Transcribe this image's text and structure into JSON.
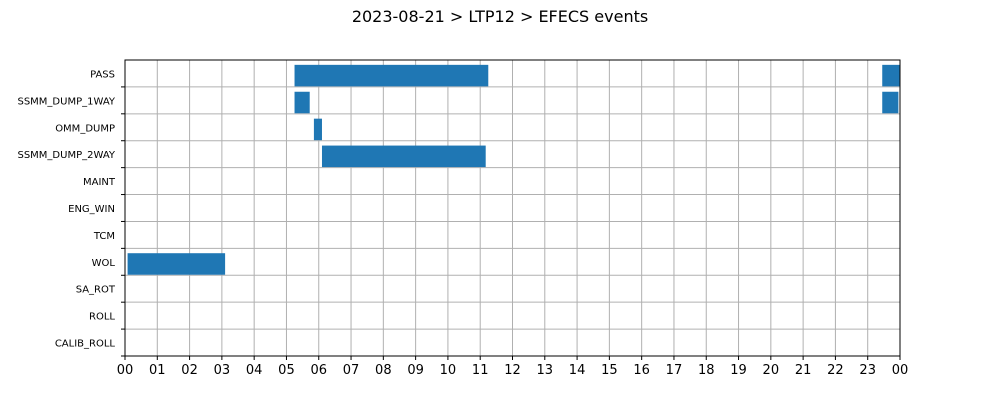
{
  "chart_data": {
    "type": "bar",
    "orientation": "horizontal-timeline",
    "title": "2023-08-21 > LTP12 > EFECS events",
    "xlabel": "",
    "ylabel": "",
    "x_range_hours": [
      0,
      24
    ],
    "x_tick_labels": [
      "00",
      "01",
      "02",
      "03",
      "04",
      "05",
      "06",
      "07",
      "08",
      "09",
      "10",
      "11",
      "12",
      "13",
      "14",
      "15",
      "16",
      "17",
      "18",
      "19",
      "20",
      "21",
      "22",
      "23",
      "00"
    ],
    "categories": [
      "PASS",
      "SSMM_DUMP_1WAY",
      "OMM_DUMP",
      "SSMM_DUMP_2WAY",
      "MAINT",
      "ENG_WIN",
      "TCM",
      "WOL",
      "SA_ROT",
      "ROLL",
      "CALIB_ROLL"
    ],
    "grid": true,
    "bar_color": "#1f77b4",
    "events": [
      {
        "category": "PASS",
        "start_hour": 5.25,
        "end_hour": 11.25
      },
      {
        "category": "PASS",
        "start_hour": 23.45,
        "end_hour": 24.0
      },
      {
        "category": "SSMM_DUMP_1WAY",
        "start_hour": 5.25,
        "end_hour": 5.72
      },
      {
        "category": "SSMM_DUMP_1WAY",
        "start_hour": 23.45,
        "end_hour": 23.95
      },
      {
        "category": "OMM_DUMP",
        "start_hour": 5.85,
        "end_hour": 6.1
      },
      {
        "category": "SSMM_DUMP_2WAY",
        "start_hour": 6.1,
        "end_hour": 11.17
      },
      {
        "category": "WOL",
        "start_hour": 0.08,
        "end_hour": 3.1
      }
    ]
  }
}
